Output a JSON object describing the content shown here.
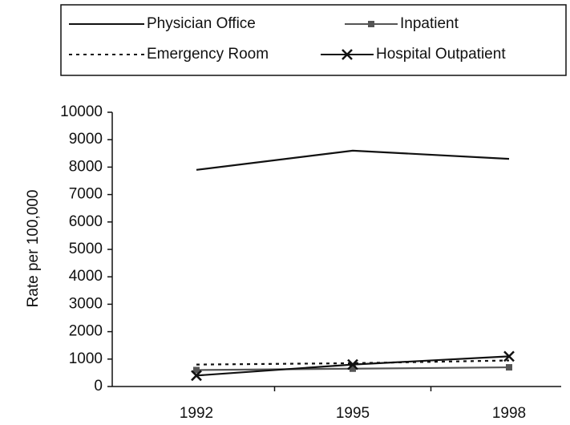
{
  "chart_data": {
    "type": "line",
    "y_label": "Rate per 100,000",
    "categories": [
      "1992",
      "1995",
      "1998"
    ],
    "series": [
      {
        "name": "Physician Office",
        "color": "#111111",
        "style": "solid",
        "marker": "none",
        "values": [
          7900,
          8600,
          8300
        ]
      },
      {
        "name": "Inpatient",
        "color": "#555555",
        "style": "solid",
        "marker": "square",
        "values": [
          600,
          650,
          700
        ]
      },
      {
        "name": "Emergency Room",
        "color": "#111111",
        "style": "dotted",
        "marker": "none",
        "values": [
          800,
          850,
          950
        ]
      },
      {
        "name": "Hospital Outpatient",
        "color": "#111111",
        "style": "solid",
        "marker": "x",
        "values": [
          400,
          800,
          1100
        ]
      }
    ],
    "ylim": [
      0,
      10000
    ],
    "yticks": [
      0,
      1000,
      2000,
      3000,
      4000,
      5000,
      6000,
      7000,
      8000,
      9000,
      10000
    ],
    "grid": false,
    "legend": "top"
  }
}
